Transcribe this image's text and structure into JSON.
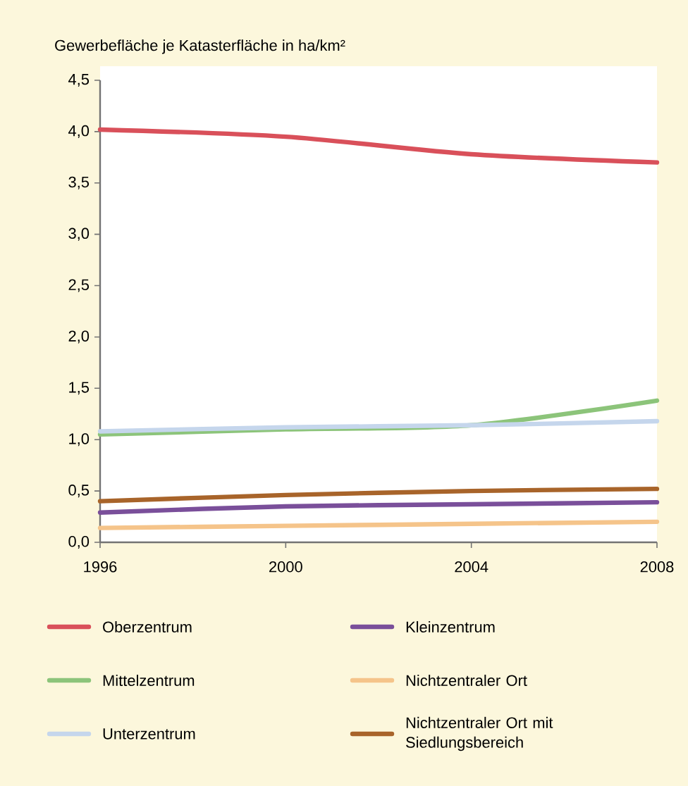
{
  "chart_data": {
    "type": "line",
    "ylabel": "Gewerbefläche je Katasterfläche in ha/km²",
    "x": [
      1996,
      2000,
      2004,
      2008
    ],
    "series": [
      {
        "name": "Oberzentrum",
        "color": "#d9505a",
        "values": [
          4.02,
          3.95,
          3.78,
          3.7
        ]
      },
      {
        "name": "Mittelzentrum",
        "color": "#8cc47a",
        "values": [
          1.05,
          1.1,
          1.14,
          1.38
        ]
      },
      {
        "name": "Unterzentrum",
        "color": "#c5d6ec",
        "values": [
          1.08,
          1.12,
          1.14,
          1.18
        ]
      },
      {
        "name": "Kleinzentrum",
        "color": "#7a4f9a",
        "values": [
          0.29,
          0.35,
          0.37,
          0.39
        ]
      },
      {
        "name": "Nichtzentraler Ort",
        "color": "#f5c48a",
        "values": [
          0.14,
          0.16,
          0.18,
          0.2
        ]
      },
      {
        "name": "Nichtzentraler Ort mit Siedlungsbereich",
        "color": "#a8642a",
        "values": [
          0.4,
          0.46,
          0.5,
          0.52
        ]
      }
    ],
    "xlim": [
      1996,
      2008
    ],
    "xticks": [
      1996,
      2000,
      2004,
      2008
    ],
    "ylim": [
      0,
      4.5
    ],
    "yticks": [
      {
        "value": 0,
        "label": "0,0"
      },
      {
        "value": 0.5,
        "label": "0,5"
      },
      {
        "value": 1,
        "label": "1,0"
      },
      {
        "value": 1.5,
        "label": "1,5"
      },
      {
        "value": 2,
        "label": "2,0"
      },
      {
        "value": 2.5,
        "label": "2,5"
      },
      {
        "value": 3,
        "label": "3,0"
      },
      {
        "value": 3.5,
        "label": "3,5"
      },
      {
        "value": 4,
        "label": "4,0"
      },
      {
        "value": 4.5,
        "label": "4,5"
      }
    ],
    "grid": false,
    "legend": "bottom",
    "marker": "none",
    "line_style": "solid"
  }
}
